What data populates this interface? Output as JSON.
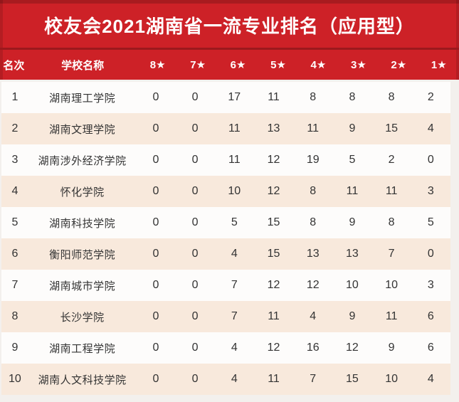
{
  "title": "校友会2021湖南省一流专业排名（应用型）",
  "table": {
    "headers": {
      "rank": "名次",
      "school": "学校名称",
      "stars": [
        "8★",
        "7★",
        "6★",
        "5★",
        "4★",
        "3★",
        "2★",
        "1★"
      ]
    },
    "rows": [
      {
        "rank": "1",
        "school": "湖南理工学院",
        "values": [
          0,
          0,
          17,
          11,
          8,
          8,
          8,
          2
        ]
      },
      {
        "rank": "2",
        "school": "湖南文理学院",
        "values": [
          0,
          0,
          11,
          13,
          11,
          9,
          15,
          4
        ]
      },
      {
        "rank": "3",
        "school": "湖南涉外经济学院",
        "values": [
          0,
          0,
          11,
          12,
          19,
          5,
          2,
          0
        ]
      },
      {
        "rank": "4",
        "school": "怀化学院",
        "values": [
          0,
          0,
          10,
          12,
          8,
          11,
          11,
          3
        ]
      },
      {
        "rank": "5",
        "school": "湖南科技学院",
        "values": [
          0,
          0,
          5,
          15,
          8,
          9,
          8,
          5
        ]
      },
      {
        "rank": "6",
        "school": "衡阳师范学院",
        "values": [
          0,
          0,
          4,
          15,
          13,
          13,
          7,
          0
        ]
      },
      {
        "rank": "7",
        "school": "湖南城市学院",
        "values": [
          0,
          0,
          7,
          12,
          12,
          10,
          10,
          3
        ]
      },
      {
        "rank": "8",
        "school": "长沙学院",
        "values": [
          0,
          0,
          7,
          11,
          4,
          9,
          11,
          6
        ]
      },
      {
        "rank": "9",
        "school": "湖南工程学院",
        "values": [
          0,
          0,
          4,
          12,
          16,
          12,
          9,
          6
        ]
      },
      {
        "rank": "10",
        "school": "湖南人文科技学院",
        "values": [
          0,
          0,
          4,
          11,
          7,
          15,
          10,
          4
        ]
      }
    ]
  },
  "chart_data": {
    "type": "table",
    "title": "校友会2021湖南省一流专业排名（应用型）",
    "columns": [
      "名次",
      "学校名称",
      "8★",
      "7★",
      "6★",
      "5★",
      "4★",
      "3★",
      "2★",
      "1★"
    ],
    "rows": [
      [
        1,
        "湖南理工学院",
        0,
        0,
        17,
        11,
        8,
        8,
        8,
        2
      ],
      [
        2,
        "湖南文理学院",
        0,
        0,
        11,
        13,
        11,
        9,
        15,
        4
      ],
      [
        3,
        "湖南涉外经济学院",
        0,
        0,
        11,
        12,
        19,
        5,
        2,
        0
      ],
      [
        4,
        "怀化学院",
        0,
        0,
        10,
        12,
        8,
        11,
        11,
        3
      ],
      [
        5,
        "湖南科技学院",
        0,
        0,
        5,
        15,
        8,
        9,
        8,
        5
      ],
      [
        6,
        "衡阳师范学院",
        0,
        0,
        4,
        15,
        13,
        13,
        7,
        0
      ],
      [
        7,
        "湖南城市学院",
        0,
        0,
        7,
        12,
        12,
        10,
        10,
        3
      ],
      [
        8,
        "长沙学院",
        0,
        0,
        7,
        11,
        4,
        9,
        11,
        6
      ],
      [
        9,
        "湖南工程学院",
        0,
        0,
        4,
        12,
        16,
        12,
        9,
        6
      ],
      [
        10,
        "湖南人文科技学院",
        0,
        0,
        4,
        11,
        7,
        15,
        10,
        4
      ]
    ],
    "layout": {
      "row_striping": "white/peach alternating",
      "header_style": "white bold on red"
    }
  },
  "colors": {
    "banner_red": "#cd2127",
    "divider_dark_red": "#9c191d",
    "row_peach": "#f8e9dc",
    "row_white": "#fdfcfb",
    "body_text": "#333333",
    "header_text": "#ffffff",
    "background": "#f3f0ed"
  }
}
